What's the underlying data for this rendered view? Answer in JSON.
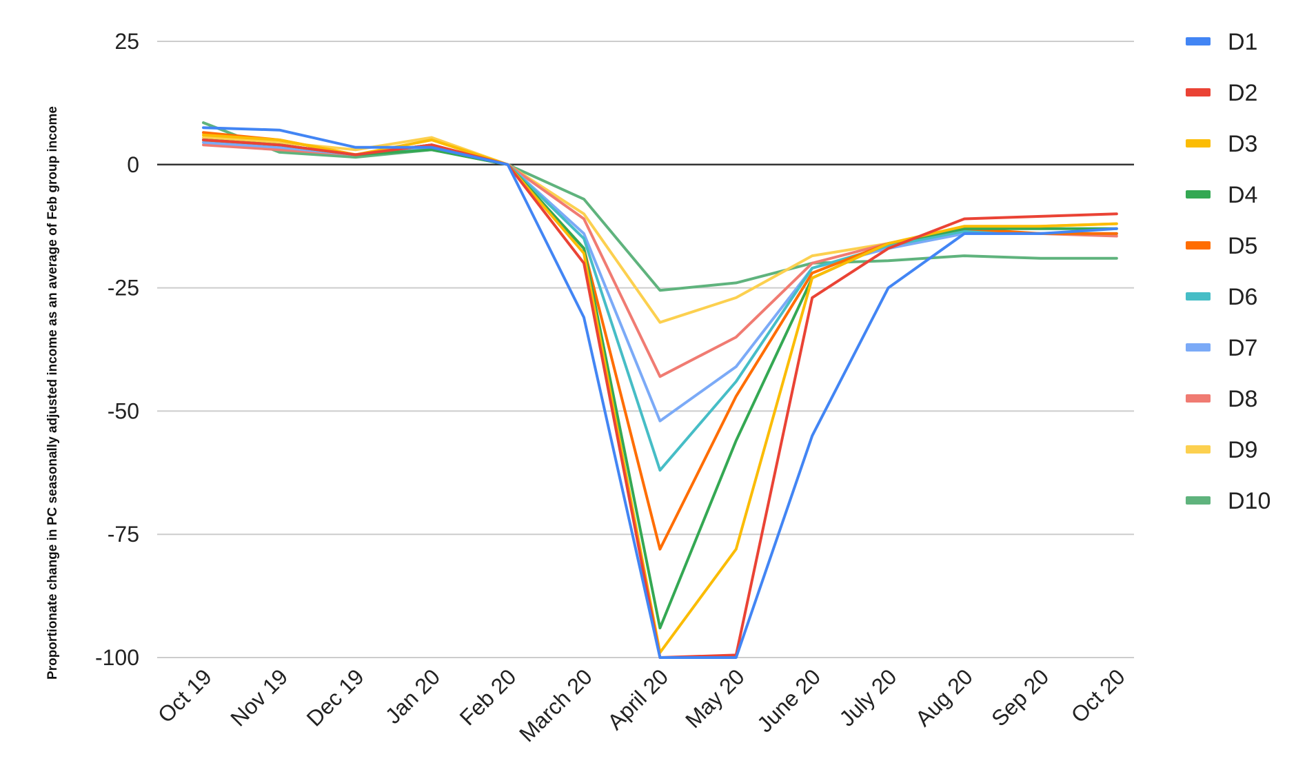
{
  "chart_data": {
    "type": "line",
    "ylabel": "Proportionate change in PC seasonally adjusted income as an average of Feb group income",
    "xlabel": "",
    "ylim": [
      -100,
      25
    ],
    "y_ticks": [
      "25",
      "0",
      "-25",
      "-50",
      "-75",
      "-100"
    ],
    "y_tick_values": [
      25,
      0,
      -25,
      -50,
      -75,
      -100
    ],
    "categories": [
      "Oct 19",
      "Nov 19",
      "Dec 19",
      "Jan 20",
      "Feb 20",
      "March 20",
      "April 20",
      "May 20",
      "June 20",
      "July 20",
      "Aug 20",
      "Sep 20",
      "Oct 20"
    ],
    "grid": true,
    "legend_position": "right",
    "series": [
      {
        "name": "D1",
        "color": "#4285F4",
        "values": [
          7.5,
          7,
          3.5,
          3.5,
          0,
          -31,
          -100,
          -100,
          -55,
          -25,
          -14,
          -14,
          -13
        ]
      },
      {
        "name": "D2",
        "color": "#EA4335",
        "values": [
          5,
          4,
          2,
          4,
          0,
          -20,
          -100,
          -99.5,
          -27,
          -17,
          -11,
          -10.5,
          -10
        ]
      },
      {
        "name": "D3",
        "color": "#FBBC04",
        "values": [
          6,
          5,
          2,
          5,
          0,
          -18,
          -99,
          -78,
          -23,
          -16,
          -12.5,
          -12.5,
          -12
        ]
      },
      {
        "name": "D4",
        "color": "#34A853",
        "values": [
          5,
          4,
          2,
          3,
          0,
          -17,
          -94,
          -56,
          -23,
          -16,
          -13,
          -13,
          -13
        ]
      },
      {
        "name": "D5",
        "color": "#FF6D01",
        "values": [
          6.5,
          5,
          2,
          4,
          0,
          -17,
          -78,
          -47,
          -22,
          -16,
          -13,
          -14,
          -14
        ]
      },
      {
        "name": "D6",
        "color": "#46BDC6",
        "values": [
          5,
          4,
          2,
          4,
          0,
          -15,
          -62,
          -44,
          -21,
          -16.5,
          -13.5,
          -14,
          -14
        ]
      },
      {
        "name": "D7",
        "color": "#7BAAF7",
        "values": [
          4.5,
          3.5,
          2,
          3.5,
          0,
          -14,
          -52,
          -41,
          -21,
          -17,
          -14,
          -14,
          -14
        ]
      },
      {
        "name": "D8",
        "color": "#F07B72",
        "values": [
          4,
          3,
          2,
          4,
          0,
          -11,
          -43,
          -35,
          -20,
          -16,
          -13.5,
          -14,
          -14.5
        ]
      },
      {
        "name": "D9",
        "color": "#FCD04F",
        "values": [
          5.5,
          4.5,
          3,
          5.5,
          0,
          -10,
          -32,
          -27,
          -18.5,
          -16,
          -13,
          -12.5,
          -12
        ]
      },
      {
        "name": "D10",
        "color": "#5FB37D",
        "values": [
          8.5,
          2.5,
          1.5,
          3,
          0,
          -7,
          -25.5,
          -24,
          -20,
          -19.5,
          -18.5,
          -19,
          -19
        ]
      }
    ]
  }
}
